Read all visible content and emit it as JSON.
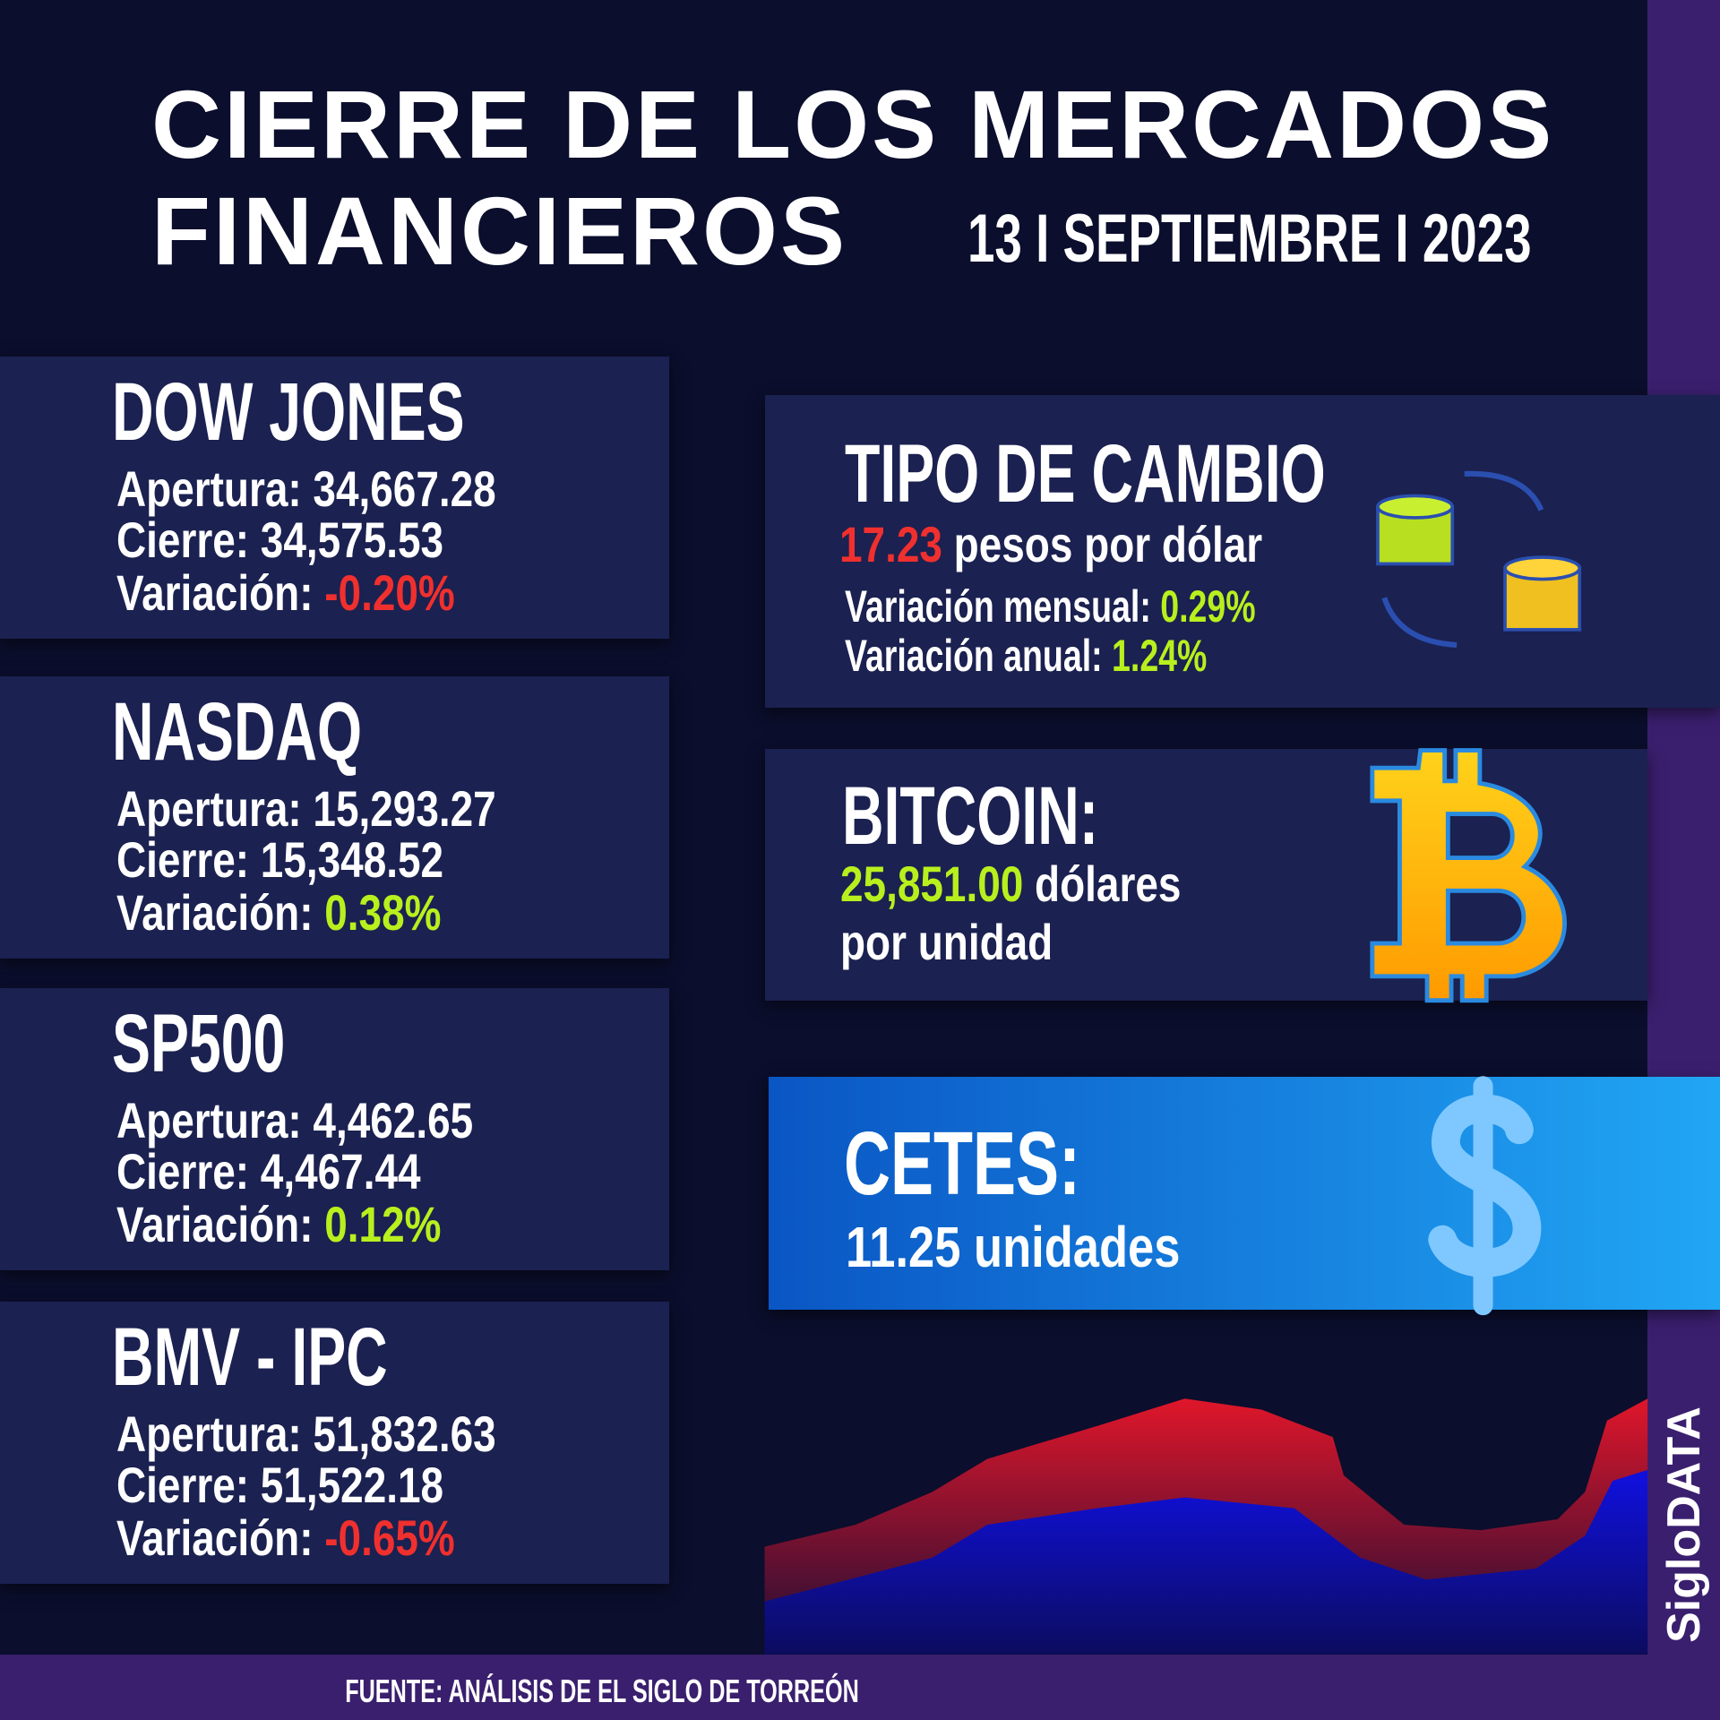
{
  "header": {
    "title_lines": [
      "CIERRE DE LOS MERCADOS",
      "FINANCIEROS"
    ],
    "date": "13 I SEPTIEMBRE I 2023"
  },
  "markets": [
    {
      "name": "DOW JONES",
      "rows": [
        {
          "label": "Apertura:",
          "value": "34,667.28"
        },
        {
          "label": "Cierre:",
          "value": "34,575.53"
        },
        {
          "label": "Variación:",
          "value": "-0.20%",
          "color": "#f0302e"
        }
      ]
    },
    {
      "name": "NASDAQ",
      "rows": [
        {
          "label": "Apertura:",
          "value": "15,293.27"
        },
        {
          "label": "Cierre:",
          "value": "15,348.52"
        },
        {
          "label": "Variación:",
          "value": "0.38%",
          "color": "#b8f01e"
        }
      ]
    },
    {
      "name": "SP500",
      "rows": [
        {
          "label": "Apertura:",
          "value": "4,462.65"
        },
        {
          "label": "Cierre:",
          "value": "4,467.44"
        },
        {
          "label": "Variación:",
          "value": "0.12%",
          "color": "#b8f01e"
        }
      ]
    },
    {
      "name": "BMV - IPC",
      "rows": [
        {
          "label": "Apertura:",
          "value": "51,832.63"
        },
        {
          "label": "Cierre:",
          "value": "51,522.18"
        },
        {
          "label": "Variación:",
          "value": "-0.65%",
          "color": "#f0302e"
        }
      ]
    }
  ],
  "exchange": {
    "title": "TIPO DE CAMBIO",
    "value": "17.23",
    "color": "#f0302e",
    "unit": "pesos por dólar",
    "rows": [
      {
        "label": "Variación mensual:",
        "value": "0.29%",
        "color": "#b8f01e"
      },
      {
        "label": "Variación anual:",
        "value": "1.24%",
        "color": "#b8f01e"
      }
    ]
  },
  "bitcoin": {
    "title": "BITCOIN:",
    "value": "25,851.00",
    "color": "#b8f01e",
    "unit_lines": [
      "dólares",
      "por unidad"
    ]
  },
  "cetes": {
    "title": "CETES:",
    "value": "11.25",
    "unit": "unidades"
  },
  "footer": {
    "source": "FUENTE: ANÁLISIS DE EL SIGLO DE TORREÓN"
  },
  "brand": "SigloDATA"
}
